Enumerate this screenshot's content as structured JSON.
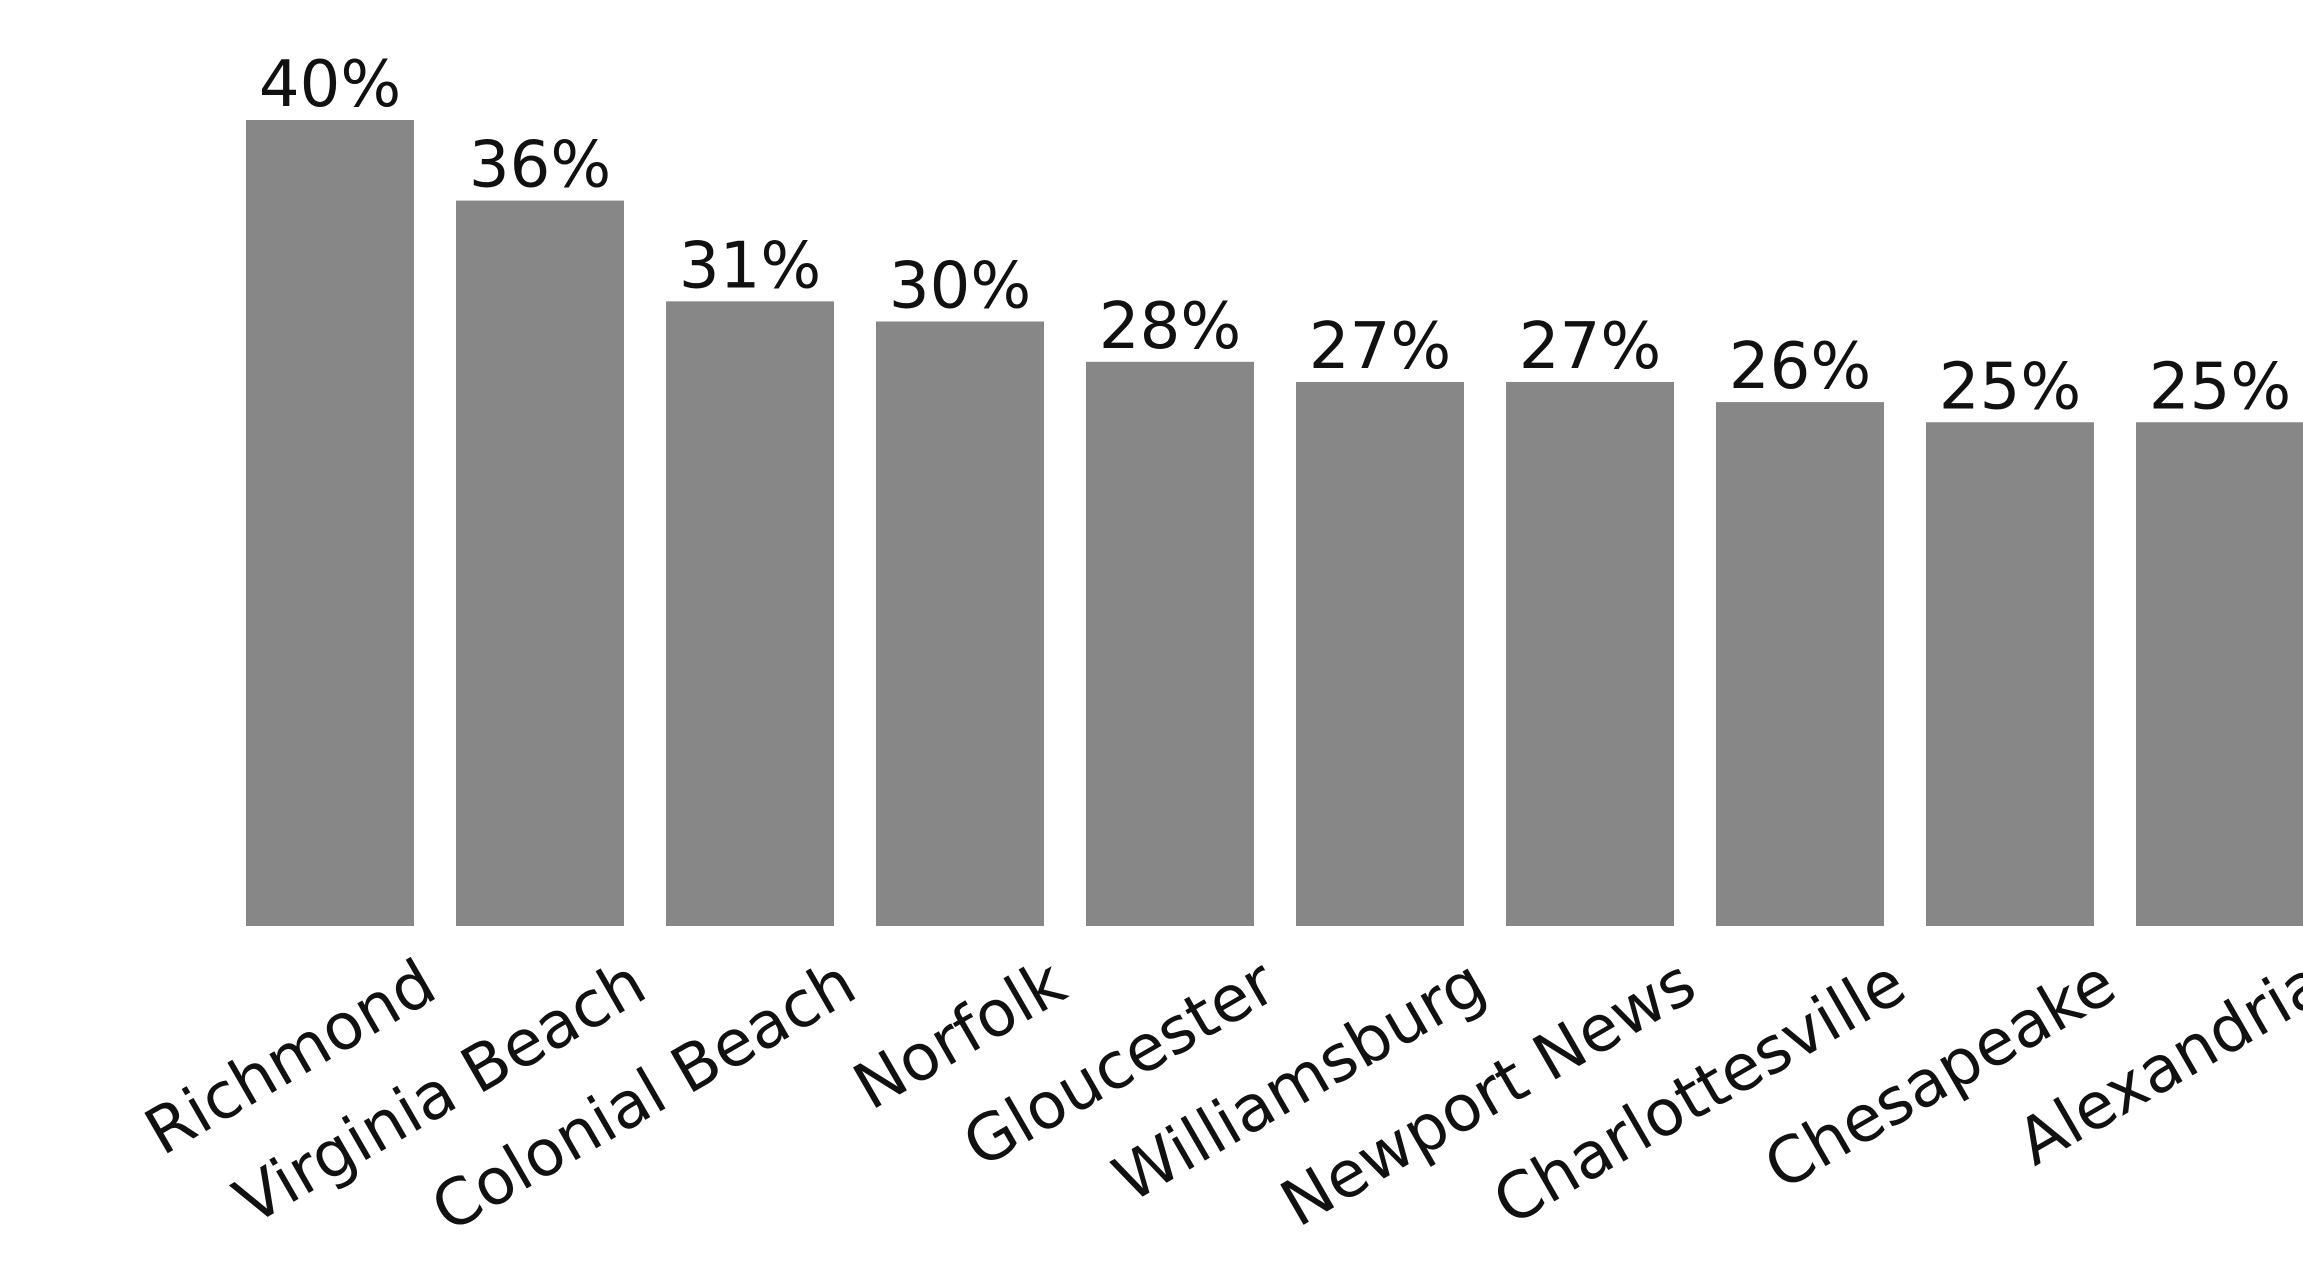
{
  "chart_data": {
    "type": "bar",
    "categories": [
      "Richmond",
      "Virginia Beach",
      "Colonial Beach",
      "Norfolk",
      "Gloucester",
      "Williamsburg",
      "Newport News",
      "Charlottesville",
      "Chesapeake",
      "Alexandria"
    ],
    "values": [
      40,
      36,
      31,
      30,
      28,
      27,
      27,
      26,
      25,
      25
    ],
    "data_labels": [
      "40%",
      "36%",
      "31%",
      "30%",
      "28%",
      "27%",
      "27%",
      "26%",
      "25%",
      "25%"
    ],
    "value_unit": "%",
    "title": "",
    "xlabel": "",
    "ylabel": "",
    "ylim": [
      0,
      40
    ],
    "grid": false,
    "legend": "none",
    "bar_color": "#878787"
  }
}
